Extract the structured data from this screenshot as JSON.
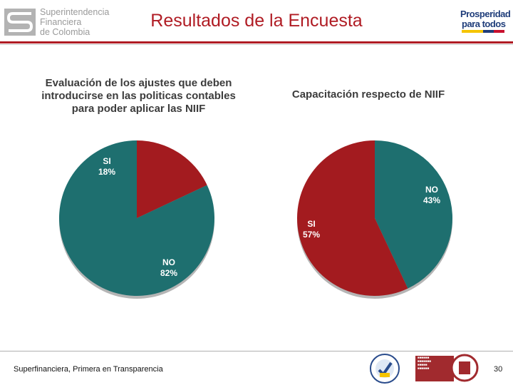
{
  "header": {
    "logo_line1": "Superintendencia",
    "logo_line2": "Financiera",
    "logo_line3": "de Colombia",
    "title": "Resultados de la Encuesta",
    "logo_right_line1": "Prosperidad",
    "logo_right_line2": "para todos"
  },
  "colors": {
    "teal": "#1e6f6f",
    "red": "#a31b1f",
    "title_red": "#b01c24"
  },
  "chart_data": [
    {
      "type": "pie",
      "title_lines": [
        "Evaluación de los ajustes que deben",
        "introducirse en las politicas contables",
        "para poder aplicar las NIIF"
      ],
      "slices": [
        {
          "label": "SI",
          "value": 18,
          "text": "18%",
          "color": "#a31b1f"
        },
        {
          "label": "NO",
          "value": 82,
          "text": "82%",
          "color": "#1e6f6f"
        }
      ]
    },
    {
      "type": "pie",
      "title_lines": [
        "Capacitación respecto de NIIF"
      ],
      "slices": [
        {
          "label": "NO",
          "value": 43,
          "text": "43%",
          "color": "#1e6f6f"
        },
        {
          "label": "SI",
          "value": 57,
          "text": "57%",
          "color": "#a31b1f"
        }
      ]
    }
  ],
  "footer": {
    "tagline": "Superfinanciera, Primera en Transparencia",
    "page_number": "30"
  }
}
